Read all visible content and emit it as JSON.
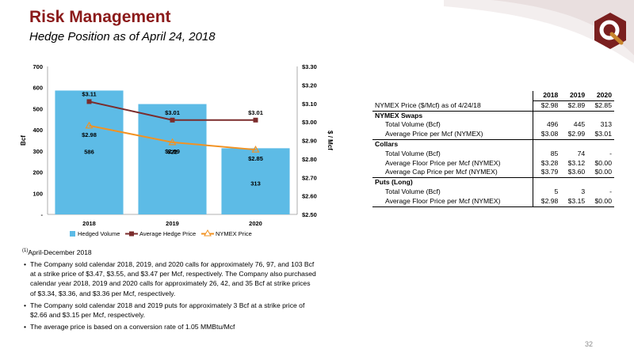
{
  "header": {
    "title": "Risk Management",
    "subtitle": "Hedge Position as of April 24, 2018"
  },
  "logo": {
    "icon": "q-logo-icon",
    "colors": [
      "#7a1f1f",
      "#c8842b"
    ]
  },
  "chart_data": {
    "type": "bar",
    "categories": [
      "2018",
      "2019",
      "2020"
    ],
    "series": [
      {
        "name": "Hedged Volume",
        "type": "bar",
        "axis": "left",
        "values": [
          586,
          522,
          313
        ],
        "labels": [
          "586",
          "522",
          "313"
        ],
        "color": "#5dbbe6"
      },
      {
        "name": "Average Hedge Price",
        "type": "line",
        "axis": "right",
        "values": [
          3.11,
          3.01,
          3.01
        ],
        "labels": [
          "$3.11",
          "$3.01",
          "$3.01"
        ],
        "color": "#7b2c2c"
      },
      {
        "name": "NYMEX Price",
        "type": "line",
        "axis": "right",
        "values": [
          2.98,
          2.89,
          2.85
        ],
        "labels": [
          "$2.98",
          "$2.89",
          "$2.85"
        ],
        "color": "#f29222"
      }
    ],
    "left_axis": {
      "label": "Bcf",
      "range": [
        0,
        700
      ],
      "ticks": [
        "-",
        "100",
        "200",
        "300",
        "400",
        "500",
        "600",
        "700"
      ]
    },
    "right_axis": {
      "label": "$ / Mcf",
      "range": [
        2.5,
        3.3
      ],
      "ticks": [
        "$2.50",
        "$2.60",
        "$2.70",
        "$2.80",
        "$2.90",
        "$3.00",
        "$3.10",
        "$3.20",
        "$3.30"
      ]
    },
    "legend": {
      "placement": "bottom",
      "entries": [
        "Hedged Volume",
        "Average Hedge Price",
        "NYMEX Price"
      ]
    },
    "grid": false
  },
  "table": {
    "headers": [
      "",
      "2018",
      "2019",
      "2020"
    ],
    "rows": [
      {
        "label": "NYMEX Price ($/Mcf) as of 4/24/18",
        "values": [
          "$2.98",
          "$2.89",
          "$2.85"
        ],
        "kind": "plain"
      },
      {
        "label": "NYMEX Swaps",
        "values": [
          "",
          "",
          ""
        ],
        "kind": "section"
      },
      {
        "label": "Total Volume (Bcf)",
        "values": [
          "496",
          "445",
          "313"
        ],
        "kind": "indent"
      },
      {
        "label": "Average Price per Mcf (NYMEX)",
        "values": [
          "$3.08",
          "$2.99",
          "$3.01"
        ],
        "kind": "indent"
      },
      {
        "label": "Collars",
        "values": [
          "",
          "",
          ""
        ],
        "kind": "section"
      },
      {
        "label": "Total Volume (Bcf)",
        "values": [
          "85",
          "74",
          "-"
        ],
        "kind": "indent"
      },
      {
        "label": "Average Floor Price per Mcf (NYMEX)",
        "values": [
          "$3.28",
          "$3.12",
          "$0.00"
        ],
        "kind": "indent"
      },
      {
        "label": "Average Cap Price per Mcf (NYMEX)",
        "values": [
          "$3.79",
          "$3.60",
          "$0.00"
        ],
        "kind": "indent"
      },
      {
        "label": "Puts (Long)",
        "values": [
          "",
          "",
          ""
        ],
        "kind": "section"
      },
      {
        "label": "Total Volume (Bcf)",
        "values": [
          "5",
          "3",
          "-"
        ],
        "kind": "indent"
      },
      {
        "label": "Average Floor Price per Mcf (NYMEX)",
        "values": [
          "$2.98",
          "$3.15",
          "$0.00"
        ],
        "kind": "indent"
      }
    ]
  },
  "footnote": {
    "marker": "(1)",
    "text": "April-December 2018"
  },
  "bullets": [
    "The Company sold calendar 2018, 2019, and 2020 calls for approximately 76, 97, and 103 Bcf at a strike price of $3.47, $3.55, and $3.47 per Mcf, respectively. The Company also purchased calendar year 2018, 2019 and 2020 calls for approximately 26, 42, and 35 Bcf at strike prices of $3.34, $3.36, and $3.36 per Mcf, respectively.",
    "The Company sold calendar 2018 and 2019 puts for approximately 3 Bcf at a strike price of $2.66 and $3.15 per Mcf, respectively.",
    "The average price is based on a conversion rate of 1.05 MMBtu/Mcf"
  ],
  "page_number": "32"
}
